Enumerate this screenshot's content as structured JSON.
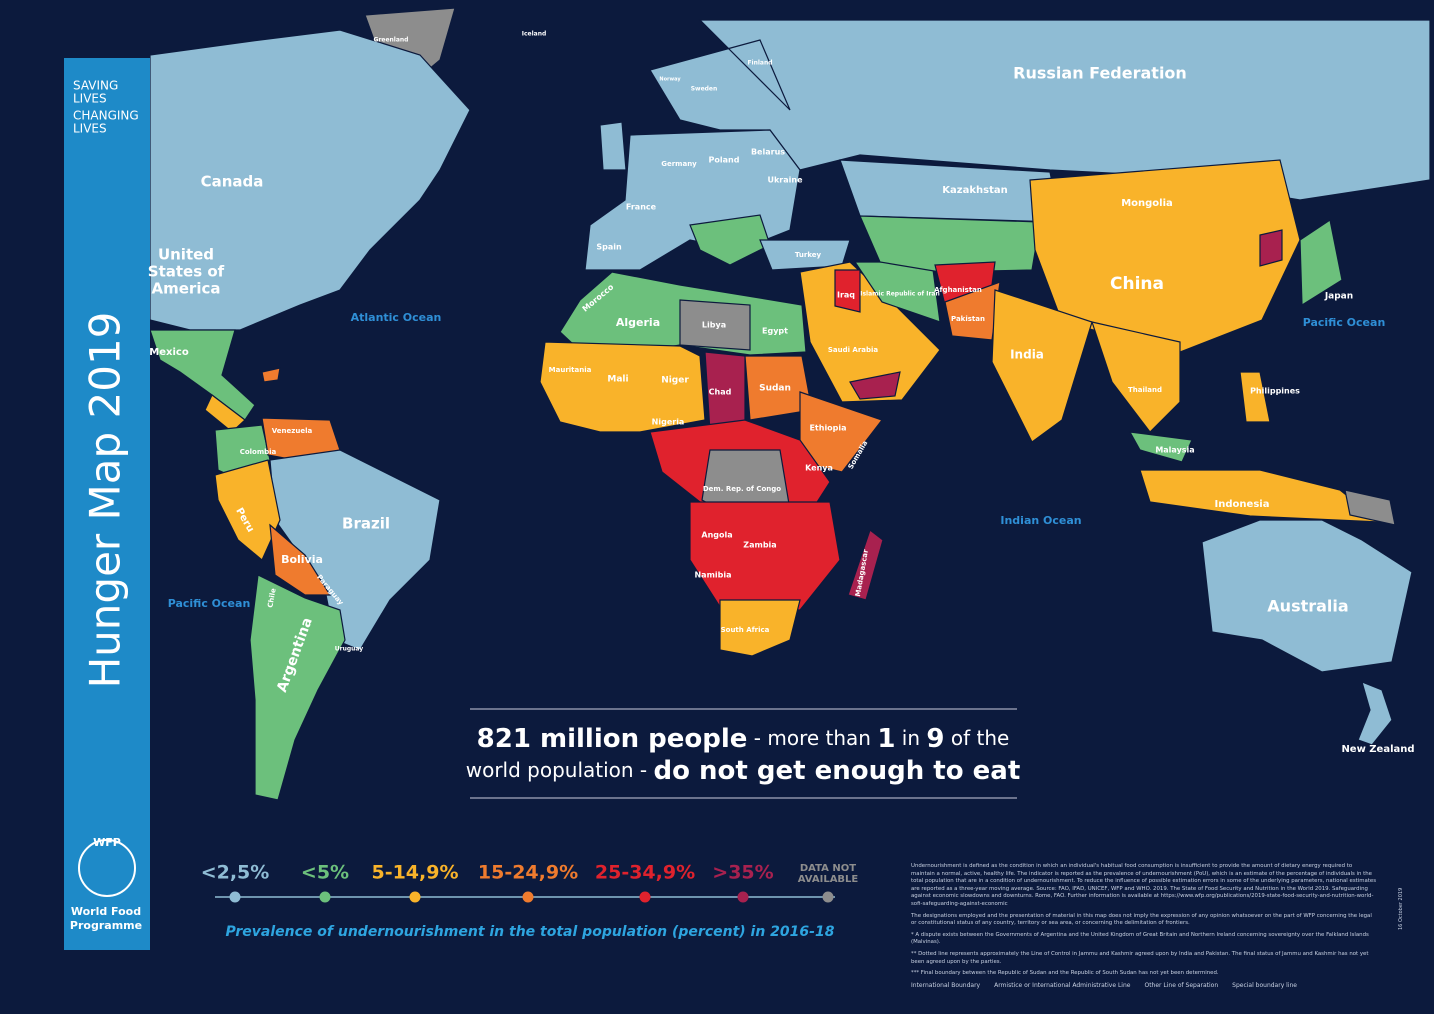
{
  "sidebar": {
    "tagline": [
      "SAVING",
      "LIVES",
      "CHANGING",
      "LIVES"
    ],
    "title": "Hunger Map 2019",
    "logo_acronym": "WFP",
    "logo_name": [
      "World Food",
      "Programme"
    ]
  },
  "map_labels": [
    "Greenland",
    "Iceland",
    "Russian Federation",
    "Canada",
    [
      "United",
      "States of",
      "America"
    ],
    "Mexico",
    "Atlantic Ocean",
    "Pacific Ocean",
    "Pacific Ocean",
    "Indian Ocean",
    "Brazil",
    "Bolivia",
    "Peru",
    "Colombia",
    "Venezuela",
    "Argentina",
    "Chile",
    "Paraguay",
    "Uruguay",
    "Norway",
    "Sweden",
    "Finland",
    "Poland",
    "Germany",
    "France",
    "Spain",
    "Ukraine",
    "Belarus",
    "Turkey",
    "Kazakhstan",
    "Mongolia",
    "China",
    "India",
    "Japan",
    "Afghanistan",
    "Pakistan",
    "Islamic Republic of Iran",
    "Iraq",
    "Saudi Arabia",
    "Algeria",
    "Libya",
    "Egypt",
    "Mali",
    "Niger",
    "Chad",
    "Sudan",
    "Nigeria",
    "Ethiopia",
    "Kenya",
    "Dem. Rep. of Congo",
    "Angola",
    "Zambia",
    "Namibia",
    "South Africa",
    "Madagascar",
    "Indonesia",
    "Philippines",
    "Australia",
    "New Zealand",
    "Malaysia",
    "Thailand",
    "Mauritania",
    "Morocco",
    "Somalia"
  ],
  "headline": {
    "line1": [
      "821 million people",
      " - more than ",
      "1",
      " in ",
      "9",
      " of the"
    ],
    "line2": [
      "world population - ",
      "do not get enough to eat"
    ]
  },
  "legend": {
    "items": [
      {
        "label": "<2,5%",
        "color": "#8fbcd4"
      },
      {
        "label": "<5%",
        "color": "#6cc07c"
      },
      {
        "label": "5-14,9%",
        "color": "#f9b32a"
      },
      {
        "label": "15-24,9%",
        "color": "#ef7b2e"
      },
      {
        "label": "25-34,9%",
        "color": "#e0222d"
      },
      {
        "label": ">35%",
        "color": "#a8214f"
      },
      {
        "label": [
          "DATA NOT",
          "AVAILABLE"
        ],
        "color": "#8d8d8d"
      }
    ],
    "caption": "Prevalence of undernourishment in the total population (percent) in 2016-18"
  },
  "notes": {
    "definition": "Undernourishment is defined as the condition in which an individual's habitual food consumption is insufficient to provide the amount of dietary energy required to maintain a normal, active, healthy life. The indicator is reported as the prevalence of undernourishment (PoU), which is an estimate of the percentage of individuals in the total population that are in a condition of undernourishment. To reduce the influence of possible estimation errors in some of the underlying parameters, national estimates are reported as a three-year moving average. Source: FAO, IFAD, UNICEF, WFP and WHO. 2019. The State of Food Security and Nutrition in the World 2019. Safeguarding against economic slowdowns and downturns. Rome, FAO. Further information is available at https://www.wfp.org/publications/2019-state-food-security-and-nutrition-world-sofi-safeguarding-against-economic",
    "disclaimer": [
      "The designations employed and the presentation of material in this map does not imply the expression of any opinion whatsoever on the part of WFP concerning the legal or constitutional status of any country, territory or sea area, or concerning the delimitation of frontiers.",
      "* A dispute exists between the Governments of Argentina and the United Kingdom of Great Britain and Northern Ireland concerning sovereignty over the Falkland Islands (Malvinas).",
      "** Dotted line represents approximately the Line of Control in Jammu and Kashmir agreed upon by India and Pakistan. The final status of Jammu and Kashmir has not yet been agreed upon by the parties.",
      "*** Final boundary between the Republic of Sudan and the Republic of South Sudan has not yet been determined."
    ],
    "boundaries": [
      "International Boundary",
      "Armistice or International Administrative Line",
      "Other Line of Separation",
      "Special boundary line"
    ],
    "date": "16 October 2019"
  }
}
